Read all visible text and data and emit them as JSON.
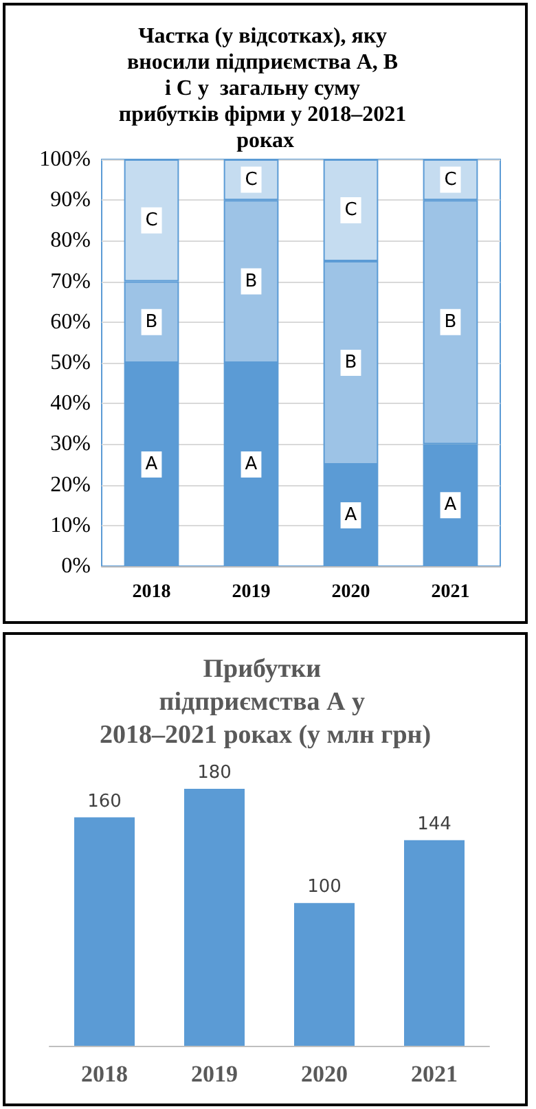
{
  "chart_data": [
    {
      "type": "bar",
      "title": "Частка (у відсотках), яку вносили підприємства А, В і С у  загальну суму прибутків фірми у 2018–2021 роках",
      "categories": [
        "2018",
        "2019",
        "2020",
        "2021"
      ],
      "stacked": true,
      "series": [
        {
          "name": "A",
          "color": "#5b9bd5",
          "values": [
            50,
            50,
            25,
            30
          ]
        },
        {
          "name": "B",
          "color": "#9dc3e6",
          "values": [
            20,
            40,
            50,
            60
          ]
        },
        {
          "name": "C",
          "color": "#c5dcf0",
          "values": [
            30,
            10,
            25,
            10
          ]
        }
      ],
      "ylim": [
        0,
        100
      ],
      "yticks": [
        {
          "value": 0,
          "label": "0%"
        },
        {
          "value": 10,
          "label": "10%"
        },
        {
          "value": 20,
          "label": "20%"
        },
        {
          "value": 30,
          "label": "30%"
        },
        {
          "value": 40,
          "label": "40%"
        },
        {
          "value": 50,
          "label": "50%"
        },
        {
          "value": 60,
          "label": "60%"
        },
        {
          "value": 70,
          "label": "70%"
        },
        {
          "value": 80,
          "label": "80%"
        },
        {
          "value": 90,
          "label": "90%"
        },
        {
          "value": 100,
          "label": "100%"
        }
      ],
      "grid": "y",
      "legend": false
    },
    {
      "type": "bar",
      "title": "Прибутки підприємства А у 2018–2021 роках (у млн грн)",
      "categories": [
        "2018",
        "2019",
        "2020",
        "2021"
      ],
      "values": [
        160,
        180,
        100,
        144
      ],
      "color": "#5b9bd5",
      "data_labels": true,
      "tick_labels": "x",
      "grid": false,
      "legend": false
    }
  ]
}
